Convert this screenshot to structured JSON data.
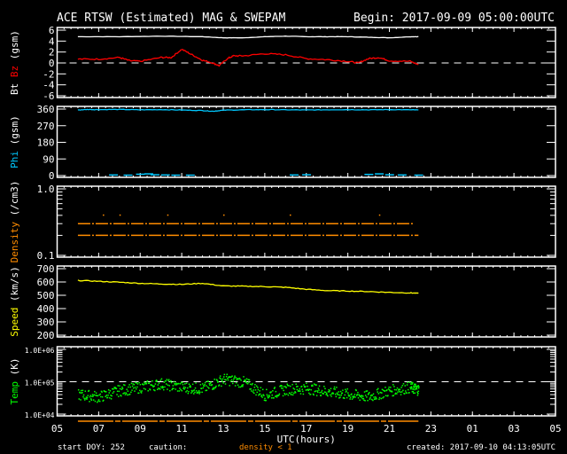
{
  "header": {
    "title": "ACE RTSW (Estimated) MAG & SWEPAM",
    "begin": "Begin: 2017-09-09 05:00:00UTC"
  },
  "footer": {
    "start_doy": "start DOY: 252",
    "caution": "caution:",
    "density_note": "density < 1",
    "created": "created: 2017-09-10 04:13:05UTC"
  },
  "colors": {
    "bt": "#ffffff",
    "bz": "#ff0000",
    "phi": "#00c8ff",
    "density": "#ff8c00",
    "speed": "#ffff00",
    "temp": "#00ff00"
  },
  "chart_data": {
    "type": "line",
    "xlabel": "UTC(hours)",
    "x_units": "hours since 2017-09-09 05:00 UTC",
    "xlim": [
      0,
      24
    ],
    "x_tick_labels": [
      "05",
      "07",
      "09",
      "11",
      "13",
      "15",
      "17",
      "19",
      "21",
      "23",
      "01",
      "03",
      "05"
    ],
    "panels": [
      {
        "id": "mag",
        "ylabel_parts": [
          "Bt",
          "Bz",
          "(gsm)"
        ],
        "ylim": [
          -6,
          6
        ],
        "scale": "linear",
        "y_tick_labels": [
          "6",
          "4",
          "2",
          "0",
          "-2",
          "-4",
          "-6"
        ],
        "y_ticks": [
          6,
          4,
          2,
          0,
          -2,
          -4,
          -6
        ],
        "ref_line": 0,
        "series": [
          {
            "name": "Bt",
            "color": "#ffffff",
            "x": [
              1,
              3,
              5,
              7,
              8,
              9,
              10,
              11,
              12,
              13,
              14,
              15,
              16,
              17,
              17.4
            ],
            "y": [
              4.8,
              4.8,
              4.9,
              4.8,
              4.6,
              4.6,
              4.8,
              4.9,
              4.8,
              4.8,
              4.8,
              4.7,
              4.6,
              4.8,
              4.8
            ]
          },
          {
            "name": "Bz",
            "color": "#ff0000",
            "x": [
              1,
              2,
              3,
              3.5,
              4,
              5,
              5.5,
              6,
              6.5,
              7,
              7.5,
              7.8,
              8.2,
              8.5,
              9,
              10,
              11,
              12,
              13,
              14,
              14.5,
              15,
              15.5,
              16,
              17,
              17.4
            ],
            "y": [
              0.7,
              0.7,
              1.0,
              0.4,
              0.3,
              1.0,
              1.0,
              2.5,
              1.5,
              0.5,
              0.0,
              -0.5,
              0.8,
              1.3,
              1.3,
              1.7,
              1.5,
              0.8,
              0.6,
              0.3,
              0.0,
              0.8,
              1.0,
              0.4,
              0.3,
              -0.3
            ]
          }
        ]
      },
      {
        "id": "phi",
        "ylabel_parts": [
          "Phi",
          "(gsm)"
        ],
        "ylim": [
          0,
          360
        ],
        "scale": "linear",
        "y_tick_labels": [
          "360",
          "270",
          "180",
          "90",
          "0"
        ],
        "y_ticks": [
          360,
          270,
          180,
          90,
          0
        ],
        "series": [
          {
            "name": "Phi",
            "color": "#00c8ff",
            "x": [
              1,
              1.5,
              2,
              3,
              4,
              5,
              6,
              7,
              7.5,
              8,
              9,
              10,
              11,
              12,
              13,
              14,
              15,
              16,
              17,
              17.4
            ],
            "y": [
              355,
              358,
              357,
              358,
              356,
              357,
              355,
              352,
              348,
              354,
              356,
              357,
              356,
              355,
              356,
              357,
              356,
              357,
              356,
              355
            ]
          },
          {
            "name": "Phi-near-zero",
            "color": "#00c8ff",
            "x": [
              2.5,
              3.2,
              3.8,
              4.2,
              4.5,
              5.0,
              5.5,
              6.2,
              11.2,
              11.8,
              14.8,
              15.3,
              15.8,
              16.4,
              17.2
            ],
            "y": [
              2,
              1,
              6,
              8,
              3,
              2,
              1,
              1,
              2,
              3,
              5,
              8,
              3,
              2,
              1
            ]
          }
        ]
      },
      {
        "id": "density",
        "ylabel_parts": [
          "Density",
          "(/cm3)"
        ],
        "ylim": [
          0.1,
          1.0
        ],
        "scale": "log",
        "y_tick_labels": [
          "1.0",
          "0.1"
        ],
        "y_ticks": [
          1.0,
          0.1
        ],
        "series": [
          {
            "name": "Density-low",
            "color": "#ff8c00",
            "x_start": 1.0,
            "x_end": 17.4,
            "y": 0.2
          },
          {
            "name": "Density-high",
            "color": "#ff8c00",
            "x_start": 1.0,
            "x_end": 17.2,
            "y": 0.3
          },
          {
            "name": "Density-spikes",
            "color": "#ff8c00",
            "x": [
              2.2,
              3.0,
              5.3,
              8.0,
              11.2,
              15.5
            ],
            "y": [
              0.4,
              0.4,
              0.4,
              0.4,
              0.4,
              0.4
            ]
          }
        ]
      },
      {
        "id": "speed",
        "ylabel_parts": [
          "Speed",
          "(km/s)"
        ],
        "ylim": [
          200,
          700
        ],
        "scale": "linear",
        "y_tick_labels": [
          "700",
          "600",
          "500",
          "400",
          "300",
          "200"
        ],
        "y_ticks": [
          700,
          600,
          500,
          400,
          300,
          200
        ],
        "series": [
          {
            "name": "Speed",
            "color": "#ffff00",
            "x": [
              1,
              2,
              3,
              4,
              5,
              6,
              7,
              8,
              9,
              10,
              11,
              12,
              13,
              14,
              15,
              16,
              17,
              17.4
            ],
            "y": [
              612,
              605,
              598,
              590,
              585,
              582,
              590,
              570,
              568,
              565,
              560,
              545,
              535,
              532,
              528,
              522,
              518,
              515
            ]
          }
        ]
      },
      {
        "id": "temp",
        "ylabel_parts": [
          "Temp",
          "(K)"
        ],
        "ylim": [
          10000,
          1000000
        ],
        "scale": "log",
        "y_tick_labels": [
          "1.0E+06",
          "1.0E+05",
          "1.0E+04"
        ],
        "y_ticks": [
          1000000,
          100000,
          10000
        ],
        "ref_line": 100000,
        "series": [
          {
            "name": "Temp",
            "color": "#00ff00",
            "x": [
              1,
              2,
              3,
              4,
              5,
              6,
              7,
              8,
              9,
              10,
              11,
              12,
              13,
              14,
              15,
              16,
              17,
              17.4
            ],
            "y": [
              42000,
              35000,
              56000,
              70000,
              90000,
              70000,
              63000,
              125000,
              100000,
              40000,
              60000,
              65000,
              52000,
              42000,
              36000,
              55000,
              70000,
              58000
            ]
          }
        ]
      }
    ]
  }
}
